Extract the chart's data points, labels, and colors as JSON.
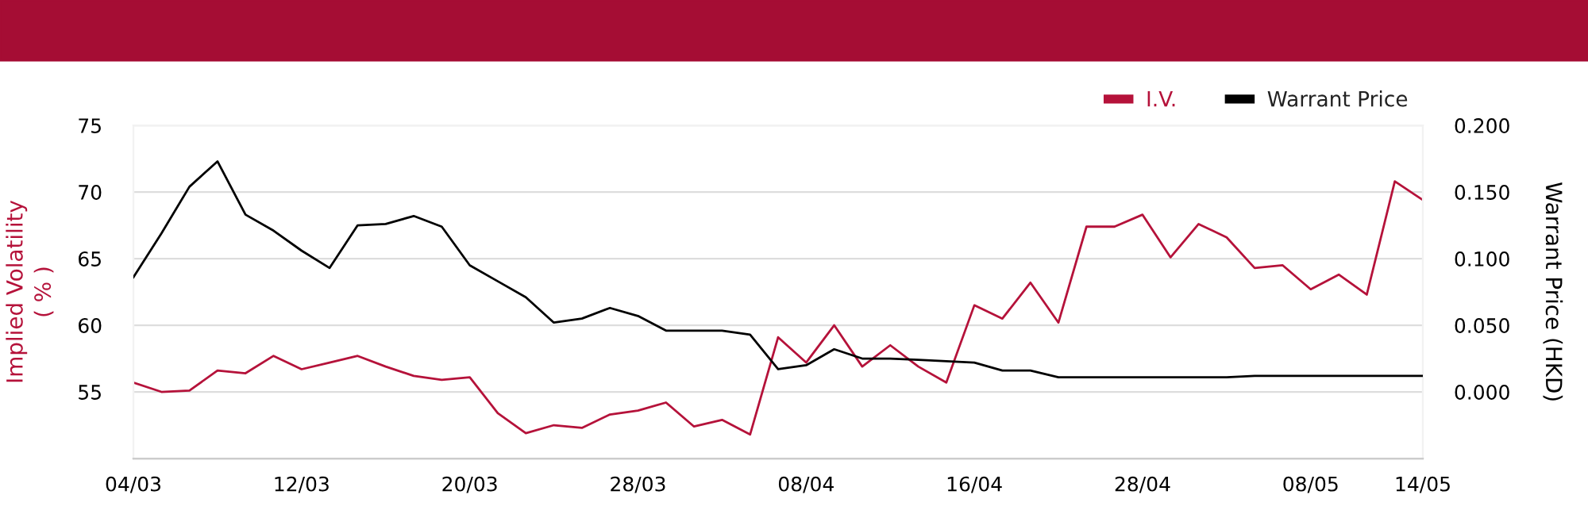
{
  "chart_data": {
    "type": "line",
    "categories": [
      "04/03",
      null,
      null,
      null,
      null,
      null,
      "12/03",
      null,
      null,
      null,
      null,
      null,
      "20/03",
      null,
      null,
      null,
      null,
      null,
      "28/03",
      null,
      null,
      null,
      null,
      null,
      "08/04",
      null,
      null,
      null,
      null,
      null,
      "16/04",
      null,
      null,
      null,
      null,
      null,
      "28/04",
      null,
      null,
      null,
      null,
      null,
      "08/05",
      null,
      null,
      null,
      "14/05"
    ],
    "series": [
      {
        "name": "I.V.",
        "color": "#b5123a",
        "values": [
          55.7,
          55.0,
          55.1,
          56.6,
          56.4,
          57.7,
          56.7,
          57.2,
          57.7,
          56.9,
          56.2,
          55.9,
          56.1,
          53.4,
          51.9,
          52.5,
          52.3,
          53.3,
          53.6,
          54.2,
          52.4,
          52.9,
          51.8,
          59.1,
          57.2,
          60.0,
          56.9,
          58.5,
          56.9,
          55.7,
          61.5,
          60.5,
          63.2,
          60.2,
          67.4,
          67.4,
          68.3,
          65.1,
          67.6,
          66.6,
          64.3,
          64.5,
          62.7,
          63.8,
          62.3,
          70.8,
          69.4
        ]
      },
      {
        "name": "Warrant Price",
        "color": "#000000",
        "axis": "y2",
        "values": [
          0.086,
          0.119,
          0.154,
          0.173,
          0.133,
          0.121,
          0.106,
          0.093,
          0.125,
          0.126,
          0.132,
          0.124,
          0.095,
          0.083,
          0.071,
          0.052,
          0.055,
          0.063,
          0.057,
          0.046,
          0.046,
          0.046,
          0.043,
          0.017,
          0.02,
          0.032,
          0.025,
          0.025,
          0.024,
          0.023,
          0.022,
          0.016,
          0.016,
          0.011,
          0.011,
          0.011,
          0.011,
          0.011,
          0.011,
          0.011,
          0.012,
          0.012,
          0.012,
          0.012,
          0.012,
          0.012,
          0.012
        ]
      }
    ],
    "ylabel": "Implied Volatility\n( % )",
    "y2label": "Warrant Price (HKD)",
    "ylim": [
      50,
      75
    ],
    "yticks": [
      55,
      60,
      65,
      70,
      75
    ],
    "y2lim": [
      -0.05,
      0.2
    ],
    "y2ticks": [
      {
        "value": 0,
        "label": "0.000"
      },
      {
        "value": 0.05,
        "label": "0.050"
      },
      {
        "value": 0.1,
        "label": "0.100"
      },
      {
        "value": 0.15,
        "label": "0.150"
      },
      {
        "value": 0.2,
        "label": "0.200"
      }
    ],
    "grid": "y",
    "legend": "top right",
    "marker": "none",
    "line_style": "solid"
  }
}
